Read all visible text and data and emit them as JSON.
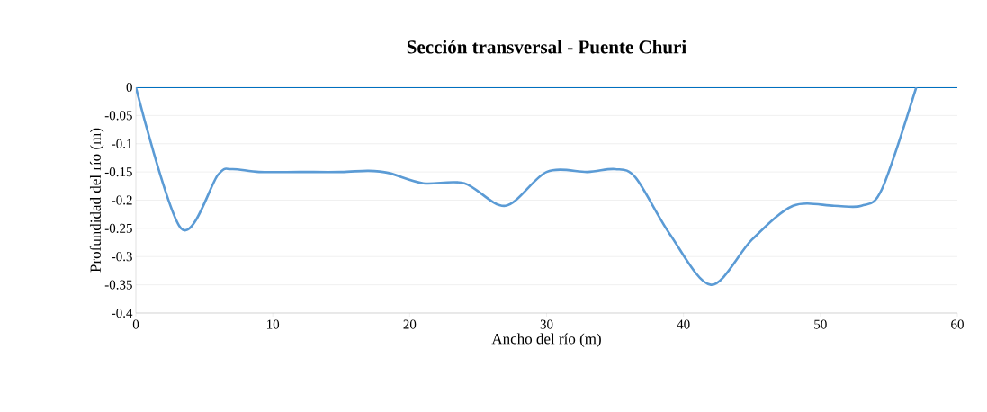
{
  "chart_data": {
    "type": "line",
    "title": "Sección transversal - Puente Churi",
    "xlabel": "Ancho del río (m)",
    "ylabel": "Profundidad del río (m)",
    "x": [
      0,
      3.3,
      6,
      7,
      9,
      12,
      15,
      17,
      18.5,
      21,
      24,
      27,
      30,
      33,
      35,
      36.5,
      39,
      42,
      45,
      48,
      51,
      53,
      54.5,
      57
    ],
    "series": [
      {
        "color": "#5b9bd5",
        "values": [
          0,
          -0.25,
          -0.155,
          -0.145,
          -0.15,
          -0.15,
          -0.15,
          -0.148,
          -0.152,
          -0.17,
          -0.17,
          -0.21,
          -0.15,
          -0.15,
          -0.145,
          -0.16,
          -0.26,
          -0.35,
          -0.27,
          -0.21,
          -0.21,
          -0.21,
          -0.18,
          0
        ]
      }
    ],
    "xlim": [
      0,
      60
    ],
    "xticks": [
      0,
      10,
      20,
      30,
      40,
      50,
      60
    ],
    "ylim": [
      -0.4,
      0
    ],
    "yticks": [
      -0.4,
      -0.35,
      -0.3,
      -0.25,
      -0.2,
      -0.15,
      -0.1,
      -0.05,
      0
    ],
    "grid": "y",
    "marker": "none",
    "line_style": "solid",
    "ref_lines": [
      {
        "axis": "y",
        "value": 0,
        "color": "#0070c0"
      }
    ]
  }
}
